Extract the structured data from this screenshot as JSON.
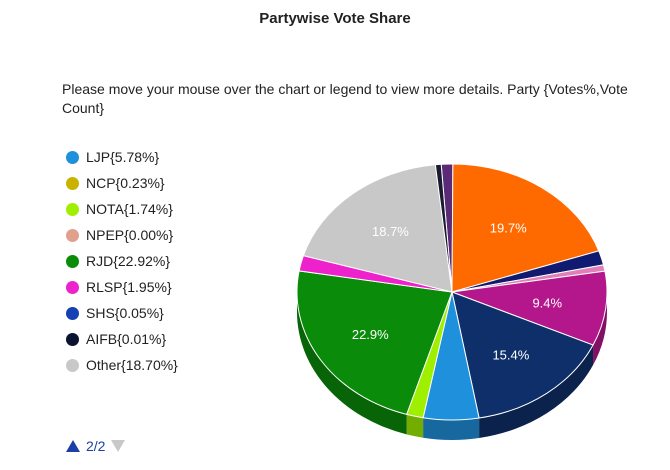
{
  "chart_data": {
    "type": "pie",
    "title": "Partywise Vote Share",
    "info_text": "Please move your mouse over the chart or legend to view more details. Party {Votes%,Vote Count}",
    "legend": [
      {
        "label": "LJP{5.78%}",
        "color": "#1e90dc"
      },
      {
        "label": "NCP{0.23%}",
        "color": "#c8b400"
      },
      {
        "label": "NOTA{1.74%}",
        "color": "#9ef000"
      },
      {
        "label": "NPEP{0.00%}",
        "color": "#e0a08c"
      },
      {
        "label": "RJD{22.92%}",
        "color": "#0a8c0a"
      },
      {
        "label": "RLSP{1.95%}",
        "color": "#ee22cc"
      },
      {
        "label": "SHS{0.05%}",
        "color": "#1440b4"
      },
      {
        "label": "AIFB{0.01%}",
        "color": "#0a1430"
      },
      {
        "label": "Other{18.70%}",
        "color": "#c8c8c8"
      }
    ],
    "slices": [
      {
        "name": "purple",
        "value": 1.2,
        "color": "#5a2a78"
      },
      {
        "name": "orange",
        "value": 19.7,
        "color": "#ff6a00",
        "label": "19.7%"
      },
      {
        "name": "navy",
        "value": 1.8,
        "color": "#101a70"
      },
      {
        "name": "pink",
        "value": 0.8,
        "color": "#e080b8"
      },
      {
        "name": "magenta",
        "value": 9.4,
        "color": "#b4168c",
        "label": "9.4%"
      },
      {
        "name": "darkblue",
        "value": 15.4,
        "color": "#0e2f6a",
        "label": "15.4%"
      },
      {
        "name": "LJP",
        "value": 5.78,
        "color": "#1e90dc"
      },
      {
        "name": "NOTA",
        "value": 1.74,
        "color": "#9ef000"
      },
      {
        "name": "RJD",
        "value": 22.9,
        "color": "#0a8c0a",
        "label": "22.9%"
      },
      {
        "name": "RLSP",
        "value": 1.95,
        "color": "#ee22cc"
      },
      {
        "name": "Other",
        "value": 18.7,
        "color": "#c8c8c8",
        "label": "18.7%"
      },
      {
        "name": "dark",
        "value": 0.6,
        "color": "#1a1a30"
      }
    ],
    "pager": {
      "text": "2/2"
    }
  }
}
